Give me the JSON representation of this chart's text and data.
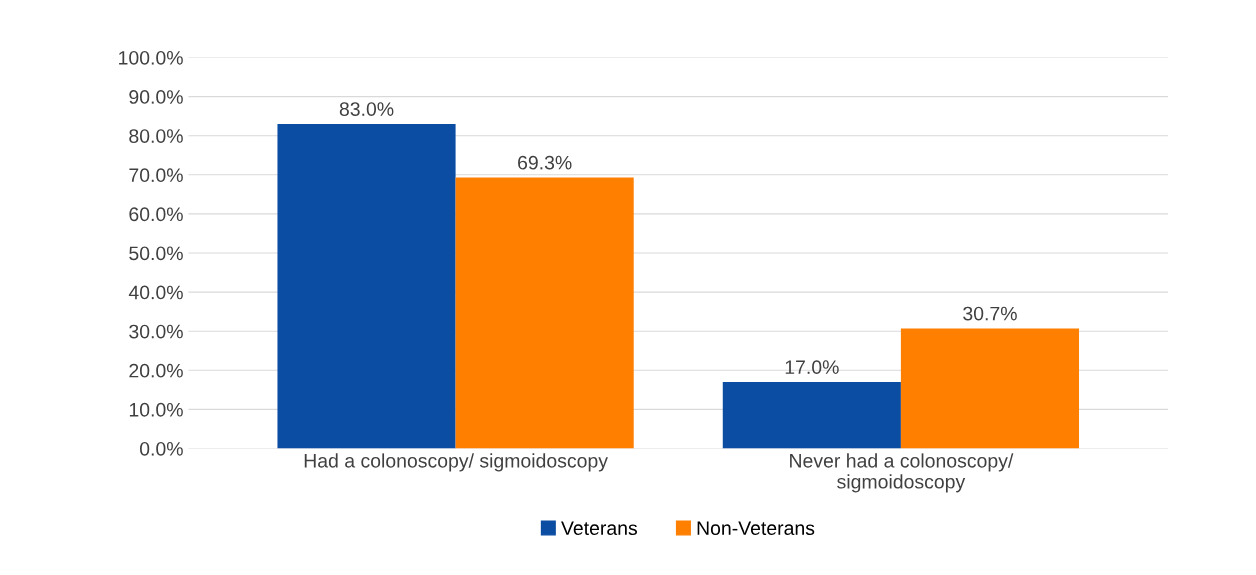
{
  "chart_data": {
    "type": "bar",
    "categories": [
      "Had a colonoscopy/ sigmoidoscopy",
      "Never had a colonoscopy/\nsigmoidoscopy"
    ],
    "series": [
      {
        "name": "Veterans",
        "color": "#0a4da2",
        "values": [
          83.0,
          17.0
        ],
        "value_labels": [
          "83.0%",
          "17.0%"
        ]
      },
      {
        "name": "Non-Veterans",
        "color": "#ff7f00",
        "values": [
          69.3,
          30.7
        ],
        "value_labels": [
          "69.3%",
          "30.7%"
        ]
      }
    ],
    "ylim": [
      0,
      100
    ],
    "yticks": [
      {
        "value": 0,
        "label": "0.0%"
      },
      {
        "value": 10,
        "label": "10.0%"
      },
      {
        "value": 20,
        "label": "20.0%"
      },
      {
        "value": 30,
        "label": "30.0%"
      },
      {
        "value": 40,
        "label": "40.0%"
      },
      {
        "value": 50,
        "label": "50.0%"
      },
      {
        "value": 60,
        "label": "60.0%"
      },
      {
        "value": 70,
        "label": "70.0%"
      },
      {
        "value": 80,
        "label": "80.0%"
      },
      {
        "value": 90,
        "label": "90.0%"
      },
      {
        "value": 100,
        "label": "100.0%"
      }
    ],
    "grid": "y",
    "legend": "bottom"
  }
}
